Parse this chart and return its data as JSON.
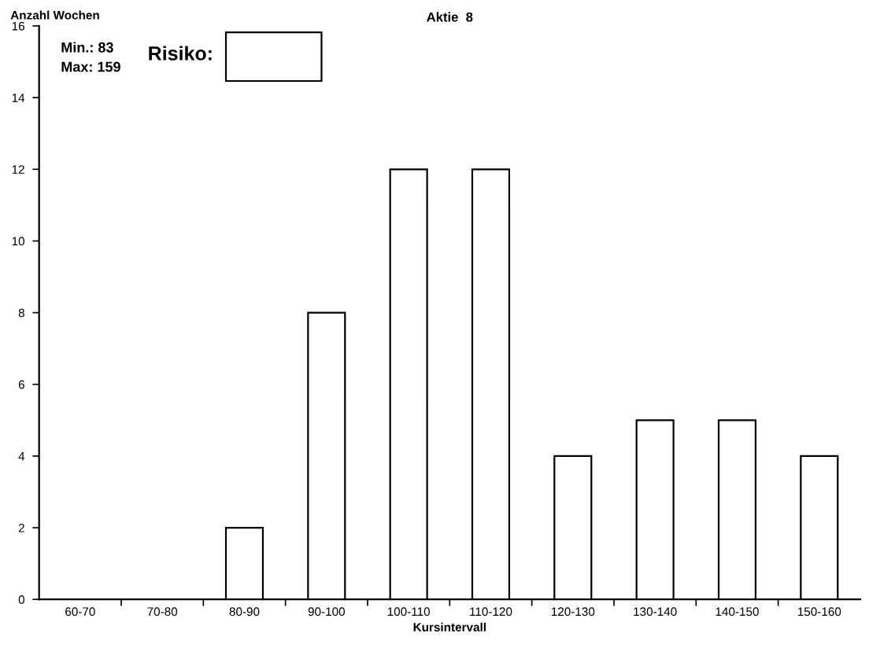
{
  "chart_data": {
    "type": "bar",
    "title": "Aktie  8",
    "ylabel": "Anzahl Wochen",
    "xlabel": "Kursintervall",
    "categories": [
      "60-70",
      "70-80",
      "80-90",
      "90-100",
      "100-110",
      "110-120",
      "120-130",
      "130-140",
      "140-150",
      "150-160"
    ],
    "values": [
      0,
      0,
      2,
      8,
      12,
      12,
      4,
      5,
      5,
      4
    ],
    "color": "#ffffff",
    "ylim": [
      0,
      16
    ],
    "yticks": [
      0,
      2,
      4,
      6,
      8,
      10,
      12,
      14,
      16
    ],
    "grid": false,
    "annotations": [
      "Min.: 83",
      "Max: 159",
      "Risiko:"
    ]
  }
}
